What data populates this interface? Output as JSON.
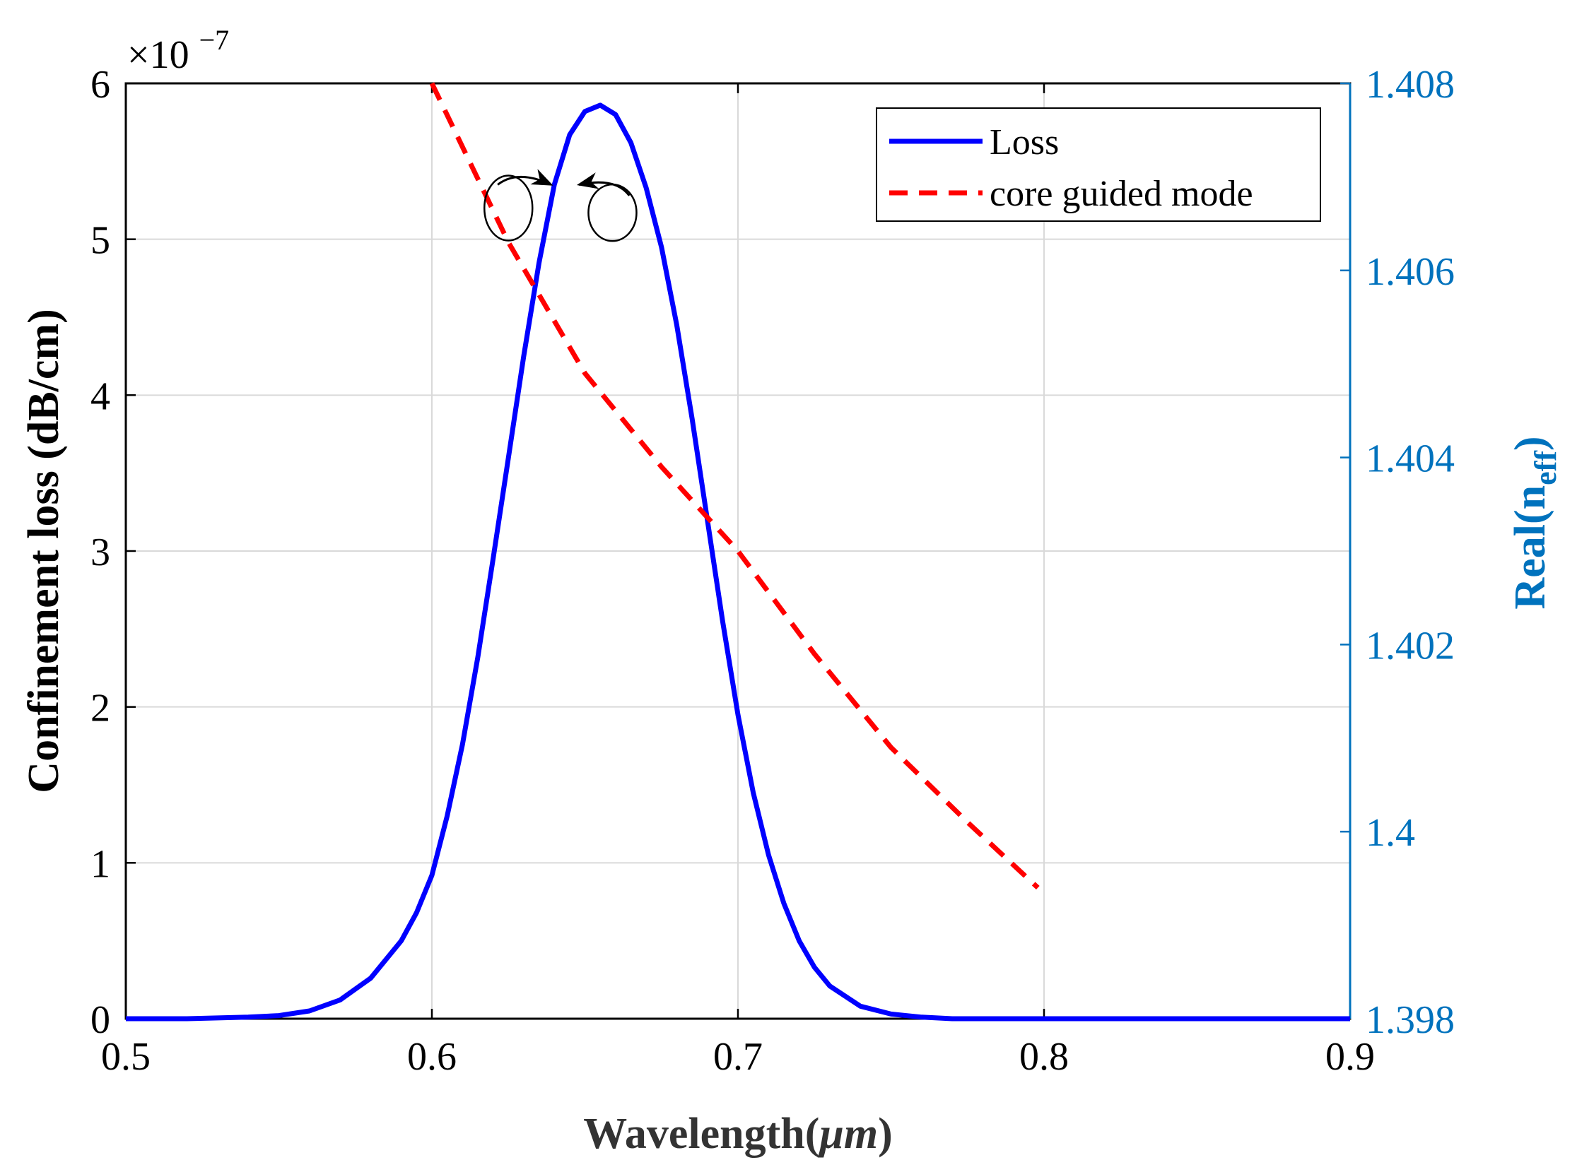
{
  "chart_data": {
    "type": "line",
    "xlabel": "Wavelength(",
    "xlabel_unit": "μm",
    "xlabel_close": ")",
    "ylabel_left": "Confinement loss (dB/cm)",
    "ylabel_right": "Real(n",
    "ylabel_right_sub": "eff",
    "ylabel_right_close": ")",
    "y_left_exponent_prefix": "×10",
    "y_left_exponent_power": "−7",
    "xlim": [
      0.5,
      0.9
    ],
    "ylim_left": [
      0,
      6
    ],
    "ylim_right": [
      1.398,
      1.408
    ],
    "x_ticks": [
      "0.5",
      "0.6",
      "0.7",
      "0.8",
      "0.9"
    ],
    "y_left_ticks": [
      "0",
      "1",
      "2",
      "3",
      "4",
      "5",
      "6"
    ],
    "y_right_ticks": [
      "1.398",
      "1.4",
      "1.402",
      "1.404",
      "1.406",
      "1.408"
    ],
    "grid": true,
    "legend_position": "top-right",
    "series": [
      {
        "name": "Loss",
        "axis": "left",
        "color": "#0000ff",
        "style": "solid",
        "unit_scale": "1e-7",
        "x": [
          0.5,
          0.52,
          0.54,
          0.55,
          0.56,
          0.57,
          0.58,
          0.59,
          0.595,
          0.6,
          0.605,
          0.61,
          0.615,
          0.62,
          0.625,
          0.63,
          0.635,
          0.64,
          0.645,
          0.65,
          0.655,
          0.66,
          0.665,
          0.67,
          0.675,
          0.68,
          0.685,
          0.69,
          0.695,
          0.7,
          0.705,
          0.71,
          0.715,
          0.72,
          0.725,
          0.73,
          0.74,
          0.75,
          0.76,
          0.77,
          0.78,
          0.79,
          0.8,
          0.85,
          0.9
        ],
        "y": [
          0.0,
          0.0,
          0.01,
          0.02,
          0.05,
          0.12,
          0.26,
          0.5,
          0.68,
          0.92,
          1.3,
          1.76,
          2.32,
          2.95,
          3.6,
          4.25,
          4.85,
          5.35,
          5.67,
          5.82,
          5.86,
          5.8,
          5.62,
          5.33,
          4.95,
          4.45,
          3.85,
          3.2,
          2.55,
          1.95,
          1.45,
          1.05,
          0.74,
          0.5,
          0.33,
          0.21,
          0.08,
          0.03,
          0.01,
          0.0,
          0.0,
          0.0,
          0.0,
          0.0,
          0.0
        ]
      },
      {
        "name": "core guided mode",
        "axis": "right",
        "color": "#ff0000",
        "style": "dashed",
        "x": [
          0.6,
          0.625,
          0.65,
          0.675,
          0.7,
          0.725,
          0.75,
          0.775,
          0.798
        ],
        "y": [
          1.408,
          1.4063,
          1.4049,
          1.4039,
          1.403,
          1.4019,
          1.4009,
          1.4001,
          1.3994
        ]
      }
    ],
    "colors": {
      "right_axis": "#0072bd",
      "grid": "#d9d9d9",
      "axis": "#000000"
    }
  }
}
